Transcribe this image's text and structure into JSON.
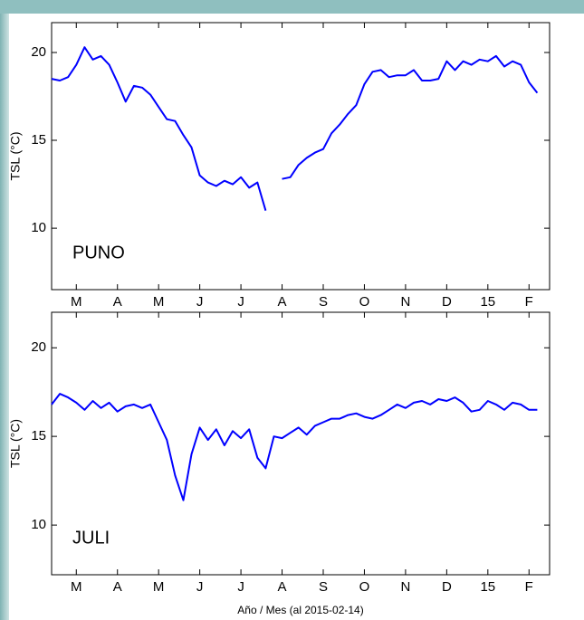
{
  "chart_data": [
    {
      "type": "line",
      "title": "PUNO",
      "ylabel": "TSL  (°C)",
      "color": "#0000ff",
      "x": [
        0,
        0.2,
        0.4,
        0.6,
        0.8,
        1.0,
        1.2,
        1.4,
        1.6,
        1.8,
        2.0,
        2.2,
        2.4,
        2.6,
        2.8,
        3.0,
        3.2,
        3.4,
        3.6,
        3.8,
        4.0,
        4.2,
        4.4,
        4.6,
        4.8,
        5.0,
        5.2,
        5.4,
        5.6,
        5.8,
        6.0,
        6.2,
        6.4,
        6.6,
        6.8,
        7.0,
        7.2,
        7.4,
        7.6,
        7.8,
        8.0,
        8.2,
        8.4,
        8.6,
        8.8,
        9.0,
        9.2,
        9.4,
        9.6,
        9.8,
        10.0,
        10.2,
        10.4,
        10.6,
        10.8,
        11.0,
        11.2,
        11.4,
        11.6,
        11.8
      ],
      "values": [
        18.5,
        18.4,
        18.6,
        19.3,
        20.3,
        19.6,
        19.8,
        19.3,
        18.3,
        17.2,
        18.1,
        18.0,
        17.6,
        16.9,
        16.2,
        16.1,
        15.3,
        14.6,
        13.0,
        12.6,
        12.4,
        12.7,
        12.5,
        12.9,
        12.3,
        12.6,
        11.0,
        null,
        12.8,
        12.9,
        13.6,
        14.0,
        14.3,
        14.5,
        15.4,
        15.9,
        16.5,
        17.0,
        18.2,
        18.9,
        19.0,
        18.6,
        18.7,
        18.7,
        19.0,
        18.4,
        18.4,
        18.5,
        19.5,
        19.0,
        19.5,
        19.3,
        19.6,
        19.5,
        19.8,
        19.2,
        19.5,
        19.3,
        18.3,
        17.7
      ],
      "xlim": [
        0,
        12.1
      ],
      "ylim": [
        6.5,
        21.7
      ],
      "yticks": [
        10,
        15,
        20
      ],
      "xticks": [
        {
          "value": 0.6,
          "label": "M"
        },
        {
          "value": 1.6,
          "label": "A"
        },
        {
          "value": 2.6,
          "label": "M"
        },
        {
          "value": 3.6,
          "label": "J"
        },
        {
          "value": 4.6,
          "label": "J"
        },
        {
          "value": 5.6,
          "label": "A"
        },
        {
          "value": 6.6,
          "label": "S"
        },
        {
          "value": 7.6,
          "label": "O"
        },
        {
          "value": 8.6,
          "label": "N"
        },
        {
          "value": 9.6,
          "label": "D"
        },
        {
          "value": 10.6,
          "label": "15"
        },
        {
          "value": 11.6,
          "label": "F"
        }
      ]
    },
    {
      "type": "line",
      "title": "JULI",
      "ylabel": "TSL  (°C)",
      "xlabel": "Año / Mes  (al  2015-02-14)",
      "color": "#0000ff",
      "x": [
        0,
        0.2,
        0.4,
        0.6,
        0.8,
        1.0,
        1.2,
        1.4,
        1.6,
        1.8,
        2.0,
        2.2,
        2.4,
        2.6,
        2.8,
        3.0,
        3.2,
        3.4,
        3.6,
        3.8,
        4.0,
        4.2,
        4.4,
        4.6,
        4.8,
        5.0,
        5.2,
        5.4,
        5.6,
        5.8,
        6.0,
        6.2,
        6.4,
        6.6,
        6.8,
        7.0,
        7.2,
        7.4,
        7.6,
        7.8,
        8.0,
        8.2,
        8.4,
        8.6,
        8.8,
        9.0,
        9.2,
        9.4,
        9.6,
        9.8,
        10.0,
        10.2,
        10.4,
        10.6,
        10.8,
        11.0,
        11.2,
        11.4,
        11.6,
        11.8
      ],
      "values": [
        16.8,
        17.4,
        17.2,
        16.9,
        16.5,
        17.0,
        16.6,
        16.9,
        16.4,
        16.7,
        16.8,
        16.6,
        16.8,
        15.8,
        14.8,
        12.8,
        11.4,
        14.0,
        15.5,
        14.8,
        15.4,
        14.5,
        15.3,
        14.9,
        15.4,
        13.8,
        13.2,
        15.0,
        14.9,
        15.2,
        15.5,
        15.1,
        15.6,
        15.8,
        16.0,
        16.0,
        16.2,
        16.3,
        16.1,
        16.0,
        16.2,
        16.5,
        16.8,
        16.6,
        16.9,
        17.0,
        16.8,
        17.1,
        17.0,
        17.2,
        16.9,
        16.4,
        16.5,
        17.0,
        16.8,
        16.5,
        16.9,
        16.8,
        16.5,
        16.5
      ],
      "xlim": [
        0,
        12.1
      ],
      "ylim": [
        7.2,
        22.0
      ],
      "yticks": [
        10,
        15,
        20
      ],
      "xticks": [
        {
          "value": 0.6,
          "label": "M"
        },
        {
          "value": 1.6,
          "label": "A"
        },
        {
          "value": 2.6,
          "label": "M"
        },
        {
          "value": 3.6,
          "label": "J"
        },
        {
          "value": 4.6,
          "label": "J"
        },
        {
          "value": 5.6,
          "label": "A"
        },
        {
          "value": 6.6,
          "label": "S"
        },
        {
          "value": 7.6,
          "label": "O"
        },
        {
          "value": 8.6,
          "label": "N"
        },
        {
          "value": 9.6,
          "label": "D"
        },
        {
          "value": 10.6,
          "label": "15"
        },
        {
          "value": 11.6,
          "label": "F"
        }
      ]
    }
  ]
}
